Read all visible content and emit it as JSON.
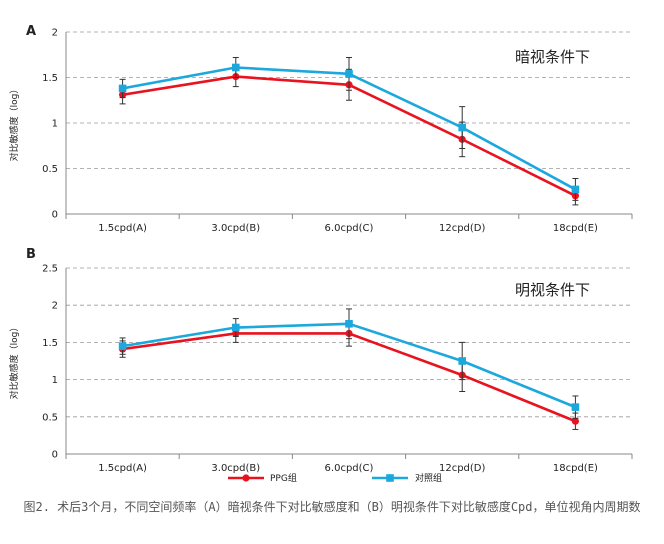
{
  "chart_data": [
    {
      "type": "line",
      "panel": "A",
      "condition": "暗视条件下",
      "ylabel": "对比敏感度（log）",
      "categories": [
        "1.5cpd(A)",
        "3.0cpd(B)",
        "6.0cpd(C)",
        "12cpd(D)",
        "18cpd(E)"
      ],
      "ylim": [
        0,
        2
      ],
      "yticks": [
        "0",
        "0.5",
        "1",
        "1.5",
        "2"
      ],
      "grid": true,
      "series": [
        {
          "name": "PPG组",
          "color": "#e8131f",
          "marker": "circle",
          "values": [
            1.31,
            1.51,
            1.42,
            0.82,
            0.2
          ],
          "errors": [
            0.1,
            0.11,
            0.17,
            0.19,
            0.1
          ]
        },
        {
          "name": "对照组",
          "color": "#1ca8dd",
          "marker": "square",
          "values": [
            1.38,
            1.61,
            1.54,
            0.95,
            0.27
          ],
          "errors": [
            0.1,
            0.11,
            0.18,
            0.23,
            0.12
          ]
        }
      ]
    },
    {
      "type": "line",
      "panel": "B",
      "condition": "明视条件下",
      "ylabel": "对比敏感度（log）",
      "categories": [
        "1.5cpd(A)",
        "3.0cpd(B)",
        "6.0cpd(C)",
        "12cpd(D)",
        "18cpd(E)"
      ],
      "ylim": [
        0,
        2.5
      ],
      "yticks": [
        "0",
        "0.5",
        "1",
        "1.5",
        "2",
        "2.5"
      ],
      "grid": true,
      "series": [
        {
          "name": "PPG组",
          "color": "#e8131f",
          "marker": "circle",
          "values": [
            1.41,
            1.62,
            1.62,
            1.06,
            0.44
          ],
          "errors": [
            0.11,
            0.12,
            0.17,
            0.22,
            0.11
          ]
        },
        {
          "name": "对照组",
          "color": "#1ca8dd",
          "marker": "square",
          "values": [
            1.45,
            1.7,
            1.75,
            1.25,
            0.63
          ],
          "errors": [
            0.11,
            0.12,
            0.2,
            0.25,
            0.15
          ]
        }
      ]
    }
  ],
  "legend": [
    "PPG组",
    "对照组"
  ],
  "caption": "图2.  术后3个月，不同空间频率（A）暗视条件下对比敏感度和（B）明视条件下对比敏感度Cpd，单位视角内周期数"
}
